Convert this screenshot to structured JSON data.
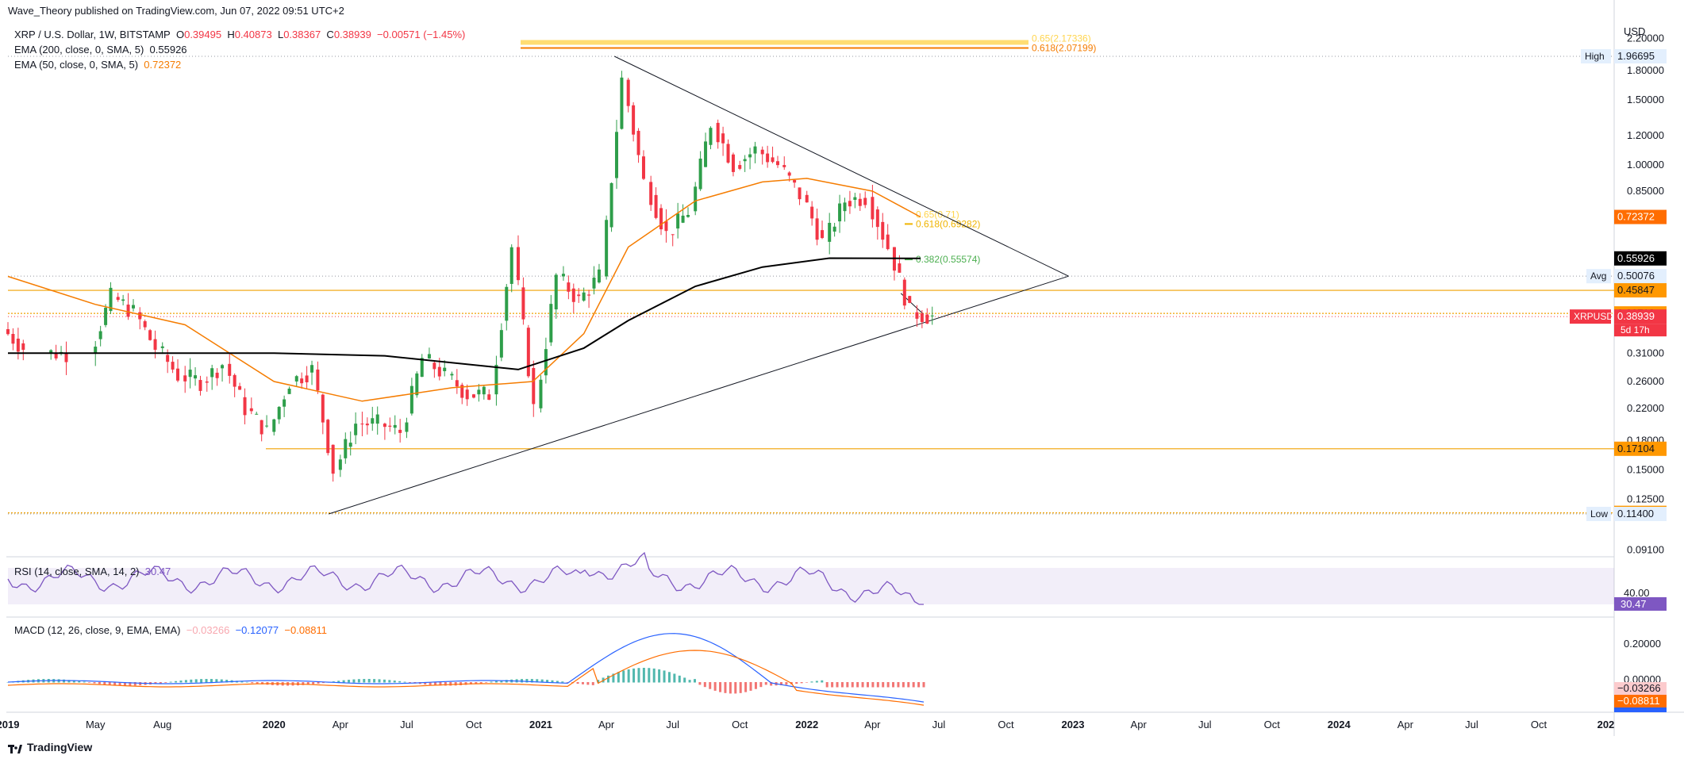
{
  "header": {
    "published": "Wave_Theory published on TradingView.com, Jun 07, 2022 09:51 UTC+2",
    "symbol": "XRP / U.S. Dollar, 1W, BITSTAMP",
    "o_label": "O",
    "o": "0.39495",
    "h_label": "H",
    "h": "0.40873",
    "l_label": "L",
    "l": "0.38367",
    "c_label": "C",
    "c": "0.38939",
    "change": "−0.00571 (−1.45%)",
    "ema200_label": "EMA (200, close, 0, SMA, 5)",
    "ema200_value": "0.55926",
    "ema50_label": "EMA (50, close, 0, SMA, 5)",
    "ema50_value": "0.72372"
  },
  "colors": {
    "up": "#2e9e4a",
    "down": "#f23645",
    "ema50": "#f57c00",
    "ema200": "#000000",
    "fib": "#f0b400",
    "rsi": "#7e57c2",
    "macd": "#2962ff",
    "signal": "#ff6d00"
  },
  "chart_data": {
    "type": "candlestick",
    "scale": "log",
    "currency": "USD",
    "price_axis_ticks": [
      "2.20000",
      "1.80000",
      "1.50000",
      "1.20000",
      "1.00000",
      "0.85000",
      "0.31000",
      "0.26000",
      "0.22000",
      "0.18000",
      "0.15000",
      "0.12500",
      "0.09100"
    ],
    "time_axis_labels": [
      "2019",
      "May",
      "Aug",
      "2020",
      "Apr",
      "Jul",
      "Oct",
      "2021",
      "Apr",
      "Jul",
      "Oct",
      "2022",
      "Apr",
      "Jul",
      "Oct",
      "2023",
      "Apr",
      "Jul",
      "Oct",
      "2024",
      "Apr",
      "Jul",
      "Oct",
      "202"
    ],
    "price_labels": [
      {
        "text": "High",
        "value": "1.96695"
      },
      {
        "text": "Avg",
        "value": "0.50076"
      },
      {
        "text": "",
        "value": "0.45847"
      },
      {
        "text": "",
        "value": "0.39713"
      },
      {
        "text": "XRPUSD",
        "value": "0.38939",
        "sub": "5d 17h"
      },
      {
        "text": "",
        "value": "0.72372"
      },
      {
        "text": "",
        "value": "0.55926"
      },
      {
        "text": "",
        "value": "0.17104"
      },
      {
        "text": "",
        "value": "0.11477"
      },
      {
        "text": "Low",
        "value": "0.11400"
      }
    ],
    "fib_labels": [
      {
        "text": "0.618(2.07199)",
        "value": 2.07199
      },
      {
        "text": "0.382(0.55574)",
        "value": 0.55574
      },
      {
        "text": "0.618(0.69282)",
        "value": 0.69282
      }
    ],
    "horizontal_levels": [
      0.45847,
      0.39713,
      0.17104,
      0.11477
    ],
    "trendlines": [
      {
        "from": [
          "2021-04-12",
          1.96695
        ],
        "to": [
          "2022-12-26",
          0.50076
        ]
      },
      {
        "from": [
          "2020-03-16",
          0.114
        ],
        "to": [
          "2022-12-26",
          0.50076
        ]
      }
    ],
    "ema50_points": [
      [
        "2019-01-01",
        0.5
      ],
      [
        "2019-05-01",
        0.42
      ],
      [
        "2019-09-01",
        0.37
      ],
      [
        "2020-01-01",
        0.26
      ],
      [
        "2020-05-01",
        0.23
      ],
      [
        "2020-09-01",
        0.25
      ],
      [
        "2020-12-21",
        0.26
      ],
      [
        "2021-03-01",
        0.35
      ],
      [
        "2021-05-01",
        0.6
      ],
      [
        "2021-08-01",
        0.8
      ],
      [
        "2021-11-01",
        0.9
      ],
      [
        "2022-01-01",
        0.92
      ],
      [
        "2022-04-01",
        0.85
      ],
      [
        "2022-06-06",
        0.72372
      ]
    ],
    "ema200_points": [
      [
        "2019-01-01",
        0.31
      ],
      [
        "2019-08-01",
        0.31
      ],
      [
        "2020-01-01",
        0.31
      ],
      [
        "2020-06-01",
        0.305
      ],
      [
        "2020-12-01",
        0.28
      ],
      [
        "2021-03-01",
        0.32
      ],
      [
        "2021-05-01",
        0.38
      ],
      [
        "2021-08-01",
        0.47
      ],
      [
        "2021-11-01",
        0.53
      ],
      [
        "2022-02-01",
        0.56
      ],
      [
        "2022-06-06",
        0.55926
      ]
    ],
    "candles_approx": [
      [
        "2019-01",
        0.36,
        0.32
      ],
      [
        "2019-03",
        0.31,
        0.31
      ],
      [
        "2019-05",
        0.31,
        0.44
      ],
      [
        "2019-06",
        0.44,
        0.4
      ],
      [
        "2019-07",
        0.4,
        0.32
      ],
      [
        "2019-08",
        0.32,
        0.27
      ],
      [
        "2019-09",
        0.27,
        0.26
      ],
      [
        "2019-10",
        0.26,
        0.29
      ],
      [
        "2019-11",
        0.29,
        0.22
      ],
      [
        "2019-12",
        0.22,
        0.19
      ],
      [
        "2020-01",
        0.19,
        0.26
      ],
      [
        "2020-02",
        0.26,
        0.28
      ],
      [
        "2020-03",
        0.28,
        0.15
      ],
      [
        "2020-04",
        0.15,
        0.2
      ],
      [
        "2020-05",
        0.2,
        0.2
      ],
      [
        "2020-06",
        0.2,
        0.19
      ],
      [
        "2020-07",
        0.19,
        0.3
      ],
      [
        "2020-08",
        0.3,
        0.27
      ],
      [
        "2020-09",
        0.27,
        0.24
      ],
      [
        "2020-10",
        0.24,
        0.24
      ],
      [
        "2020-11",
        0.24,
        0.6
      ],
      [
        "2020-12",
        0.6,
        0.22
      ],
      [
        "2021-01",
        0.22,
        0.5
      ],
      [
        "2021-02",
        0.5,
        0.43
      ],
      [
        "2021-03",
        0.43,
        0.5
      ],
      [
        "2021-04",
        0.5,
        1.7
      ],
      [
        "2021-05",
        1.7,
        0.9
      ],
      [
        "2021-06",
        0.9,
        0.65
      ],
      [
        "2021-07",
        0.65,
        0.75
      ],
      [
        "2021-08",
        0.75,
        1.3
      ],
      [
        "2021-09",
        1.3,
        1.0
      ],
      [
        "2021-10",
        1.0,
        1.1
      ],
      [
        "2021-11",
        1.1,
        1.0
      ],
      [
        "2021-12",
        1.0,
        0.83
      ],
      [
        "2022-01",
        0.83,
        0.62
      ],
      [
        "2022-02",
        0.62,
        0.8
      ],
      [
        "2022-03",
        0.8,
        0.82
      ],
      [
        "2022-04",
        0.82,
        0.6
      ],
      [
        "2022-05",
        0.6,
        0.4
      ],
      [
        "2022-06",
        0.4,
        0.389
      ]
    ],
    "rsi": {
      "label": "RSI (14, close, SMA, 14, 2)",
      "value": "30.47",
      "axis": "40.00",
      "badge": "30.47"
    },
    "macd": {
      "label": "MACD (12, 26, close, 9, EMA, EMA)",
      "hist": "−0.03266",
      "macd": "−0.12077",
      "signal": "−0.08811",
      "axis_ticks": [
        "0.20000",
        "0.00000"
      ],
      "badges": [
        "−0.03266",
        "−0.08811"
      ]
    }
  },
  "footer": {
    "brand": "TradingView"
  }
}
